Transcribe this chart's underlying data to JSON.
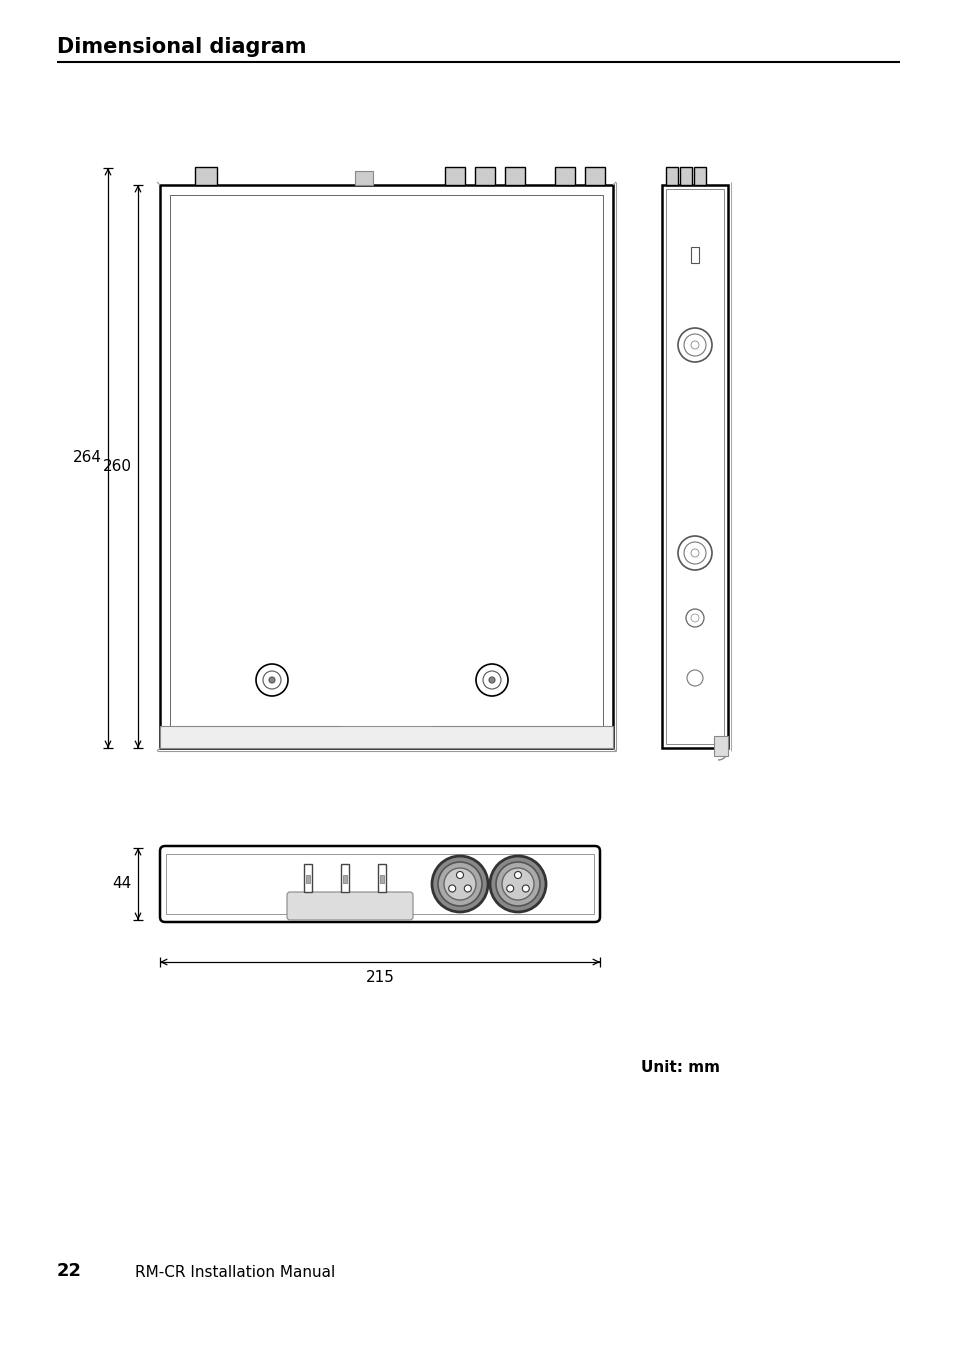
{
  "title": "Dimensional diagram",
  "page_label": "22",
  "page_subtitle": "RM-CR Installation Manual",
  "unit_label": "Unit: mm",
  "dim_264": "264",
  "dim_260": "260",
  "dim_44": "44",
  "dim_215": "215",
  "bg_color": "#ffffff",
  "line_color": "#000000",
  "gray1": "#888888",
  "gray2": "#aaaaaa",
  "gray3": "#cccccc",
  "gray4": "#dddddd"
}
